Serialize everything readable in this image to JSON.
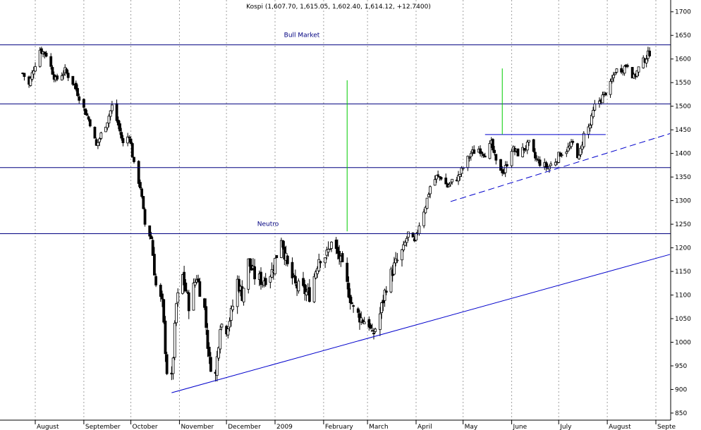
{
  "chart_data": {
    "type": "candlestick",
    "title": "Kospi (1,607.70, 1,615.05, 1,602.40, 1,614.12, +12.7400)",
    "ylim": [
      835,
      1725
    ],
    "y_ticks": [
      850,
      900,
      950,
      1000,
      1050,
      1100,
      1150,
      1200,
      1250,
      1300,
      1350,
      1400,
      1450,
      1500,
      1550,
      1600,
      1650,
      1700
    ],
    "x_labels": [
      "August",
      "September",
      "October",
      "November",
      "December",
      "2009",
      "February",
      "March",
      "April",
      "May",
      "June",
      "July",
      "August",
      "Septe"
    ],
    "horizontal_levels": [
      {
        "value": 1630,
        "label": "Bull Market"
      },
      {
        "value": 1505,
        "label": ""
      },
      {
        "value": 1370,
        "label": ""
      },
      {
        "value": 1230,
        "label": "Neutro"
      }
    ],
    "trend_lines": [
      {
        "from": [
          "2008-10-27",
          893
        ],
        "to": [
          "2009-09-10",
          1186
        ],
        "style": "solid"
      },
      {
        "from": [
          "2009-04-23",
          1298
        ],
        "to": [
          "2009-09-10",
          1442
        ],
        "style": "dashed"
      },
      {
        "from": [
          "2009-05-15",
          1440
        ],
        "to": [
          "2009-07-31",
          1440
        ],
        "style": "solid"
      }
    ],
    "vertical_markers": [
      {
        "date": "2009-02-16",
        "from": 1235,
        "to": 1555
      },
      {
        "date": "2009-05-26",
        "from": 1440,
        "to": 1580
      }
    ],
    "close_series": [
      [
        "2008-07-24",
        1570
      ],
      [
        "2008-07-28",
        1545
      ],
      [
        "2008-07-31",
        1580
      ],
      [
        "2008-08-04",
        1620
      ],
      [
        "2008-08-08",
        1610
      ],
      [
        "2008-08-14",
        1555
      ],
      [
        "2008-08-20",
        1575
      ],
      [
        "2008-08-26",
        1545
      ],
      [
        "2008-09-01",
        1495
      ],
      [
        "2008-09-05",
        1465
      ],
      [
        "2008-09-09",
        1415
      ],
      [
        "2008-09-12",
        1440
      ],
      [
        "2008-09-16",
        1470
      ],
      [
        "2008-09-19",
        1500
      ],
      [
        "2008-09-23",
        1460
      ],
      [
        "2008-09-26",
        1420
      ],
      [
        "2008-09-30",
        1440
      ],
      [
        "2008-10-03",
        1375
      ],
      [
        "2008-10-07",
        1330
      ],
      [
        "2008-10-10",
        1250
      ],
      [
        "2008-10-14",
        1220
      ],
      [
        "2008-10-17",
        1120
      ],
      [
        "2008-10-21",
        1080
      ],
      [
        "2008-10-24",
        940
      ],
      [
        "2008-10-27",
        920
      ],
      [
        "2008-10-30",
        1080
      ],
      [
        "2008-11-03",
        1140
      ],
      [
        "2008-11-07",
        1080
      ],
      [
        "2008-11-12",
        1140
      ],
      [
        "2008-11-17",
        1070
      ],
      [
        "2008-11-20",
        960
      ],
      [
        "2008-11-24",
        930
      ],
      [
        "2008-11-27",
        1040
      ],
      [
        "2008-12-01",
        1030
      ],
      [
        "2008-12-04",
        1060
      ],
      [
        "2008-12-08",
        1130
      ],
      [
        "2008-12-11",
        1100
      ],
      [
        "2008-12-15",
        1170
      ],
      [
        "2008-12-19",
        1140
      ],
      [
        "2008-12-24",
        1130
      ],
      [
        "2008-12-30",
        1150
      ],
      [
        "2009-01-05",
        1220
      ],
      [
        "2009-01-09",
        1160
      ],
      [
        "2009-01-14",
        1120
      ],
      [
        "2009-01-19",
        1110
      ],
      [
        "2009-01-23",
        1100
      ],
      [
        "2009-01-29",
        1180
      ],
      [
        "2009-02-03",
        1185
      ],
      [
        "2009-02-06",
        1210
      ],
      [
        "2009-02-11",
        1180
      ],
      [
        "2009-02-16",
        1120
      ],
      [
        "2009-02-20",
        1070
      ],
      [
        "2009-02-25",
        1050
      ],
      [
        "2009-03-02",
        1040
      ],
      [
        "2009-03-04",
        1010
      ],
      [
        "2009-03-09",
        1060
      ],
      [
        "2009-03-13",
        1120
      ],
      [
        "2009-03-18",
        1160
      ],
      [
        "2009-03-23",
        1190
      ],
      [
        "2009-03-27",
        1230
      ],
      [
        "2009-03-31",
        1210
      ],
      [
        "2009-04-03",
        1250
      ],
      [
        "2009-04-07",
        1290
      ],
      [
        "2009-04-10",
        1330
      ],
      [
        "2009-04-14",
        1350
      ],
      [
        "2009-04-17",
        1350
      ],
      [
        "2009-04-21",
        1330
      ],
      [
        "2009-04-24",
        1340
      ],
      [
        "2009-04-28",
        1350
      ],
      [
        "2009-05-01",
        1370
      ],
      [
        "2009-05-06",
        1400
      ],
      [
        "2009-05-11",
        1410
      ],
      [
        "2009-05-15",
        1400
      ],
      [
        "2009-05-19",
        1420
      ],
      [
        "2009-05-22",
        1380
      ],
      [
        "2009-05-27",
        1360
      ],
      [
        "2009-06-01",
        1410
      ],
      [
        "2009-06-05",
        1400
      ],
      [
        "2009-06-09",
        1410
      ],
      [
        "2009-06-12",
        1420
      ],
      [
        "2009-06-16",
        1390
      ],
      [
        "2009-06-19",
        1380
      ],
      [
        "2009-06-24",
        1370
      ],
      [
        "2009-06-29",
        1385
      ],
      [
        "2009-07-02",
        1400
      ],
      [
        "2009-07-07",
        1410
      ],
      [
        "2009-07-10",
        1420
      ],
      [
        "2009-07-14",
        1390
      ],
      [
        "2009-07-17",
        1440
      ],
      [
        "2009-07-21",
        1460
      ],
      [
        "2009-07-24",
        1500
      ],
      [
        "2009-07-29",
        1520
      ],
      [
        "2009-08-03",
        1545
      ],
      [
        "2009-08-06",
        1575
      ],
      [
        "2009-08-11",
        1580
      ],
      [
        "2009-08-14",
        1590
      ],
      [
        "2009-08-18",
        1560
      ],
      [
        "2009-08-21",
        1580
      ],
      [
        "2009-08-25",
        1600
      ],
      [
        "2009-08-28",
        1614
      ]
    ]
  },
  "colors": {
    "background": "#ffffff",
    "levels": "#000080",
    "trend": "#0000cc",
    "markers": "#00cc00",
    "grid": "#a0a0a0",
    "candle": "#000000"
  }
}
